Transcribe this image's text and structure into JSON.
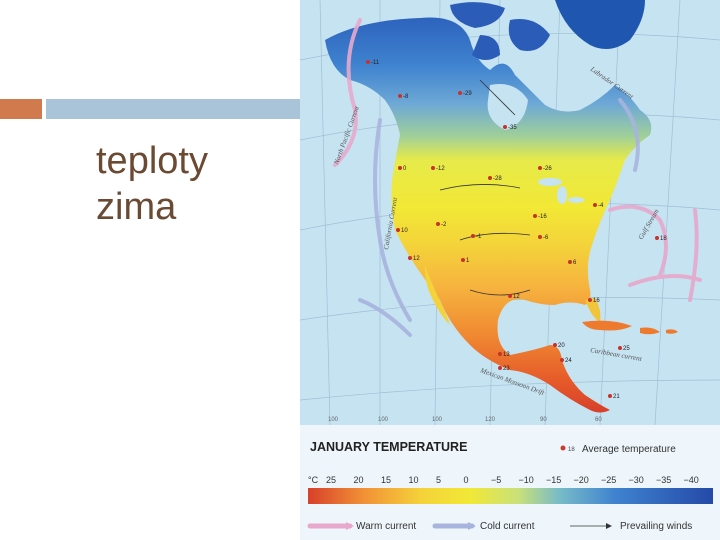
{
  "slide": {
    "title_line1": "teploty",
    "title_line2": "zima"
  },
  "colors": {
    "accent_orange": "#d07a4e",
    "accent_blue": "#a9c3d9",
    "title_text": "#6b4a34",
    "ocean": "#c6e3f2",
    "warm_current": "#e7a8cc",
    "cold_current": "#a8b4de"
  },
  "map": {
    "legend": {
      "title": "JANUARY TEMPERATURE",
      "point_label": "Average temperature",
      "point_sample": "18",
      "unit_label": "°C",
      "scale_values": [
        "25",
        "20",
        "15",
        "10",
        "5",
        "0",
        "−5",
        "−10",
        "−15",
        "−20",
        "−25",
        "−30",
        "−35",
        "−40"
      ],
      "scale_colors": [
        "#d8402a",
        "#e96a2c",
        "#f29236",
        "#f6b43f",
        "#f4d23a",
        "#f2e836",
        "#e6ea4a",
        "#c9e07a",
        "#9fcf9a",
        "#78bcc8",
        "#5aa0d8",
        "#3f82cf",
        "#2e62bc",
        "#244aa8"
      ],
      "warm_current_label": "Warm current",
      "cold_current_label": "Cold current",
      "winds_label": "Prevailing winds"
    },
    "current_labels": [
      "North Pacific Current",
      "California Current",
      "Labrador Current",
      "Gulf Stream",
      "Caribbean current",
      "Mexican Monsoon Drift"
    ],
    "station_temps": [
      "-11",
      "-8",
      "-29",
      "-35",
      "-12",
      "-28",
      "0",
      "-26",
      "-2",
      "10",
      "-1",
      "-16",
      "-6",
      "-4",
      "12",
      "1",
      "6",
      "18",
      "12",
      "16",
      "20",
      "13",
      "23",
      "24",
      "25",
      "21"
    ],
    "grid_bottom_labels": [
      "100",
      "100",
      "100",
      "120",
      "90",
      "60"
    ]
  }
}
